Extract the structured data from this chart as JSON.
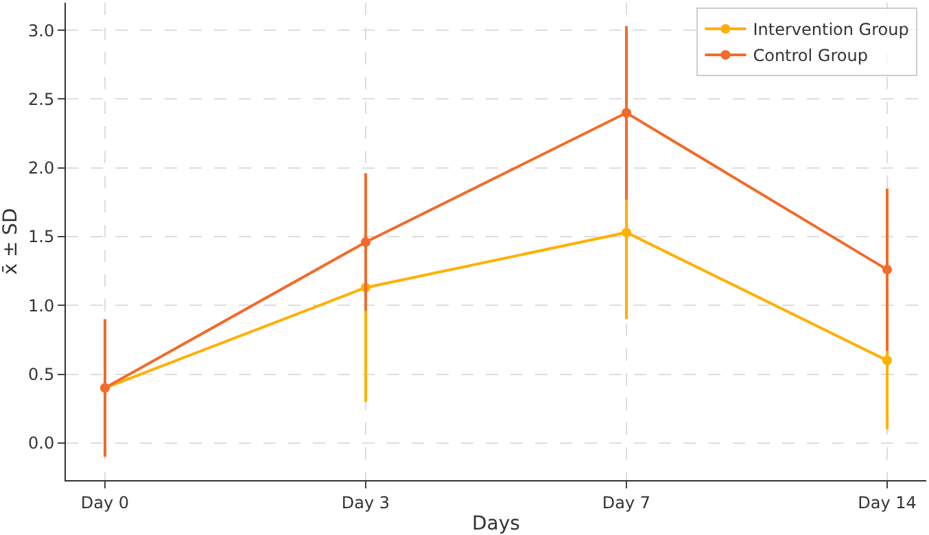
{
  "chart_data": {
    "type": "line",
    "xlabel": "Days",
    "ylabel": "x̄ ± SD",
    "categories": [
      "Day 0",
      "Day 3",
      "Day 7",
      "Day 14"
    ],
    "series": [
      {
        "name": "Intervention Group",
        "color": "#ffb000",
        "values": [
          0.4,
          1.13,
          1.53,
          0.6
        ],
        "errors": [
          null,
          0.83,
          0.63,
          0.5
        ]
      },
      {
        "name": "Control Group",
        "color": "#f26b2a",
        "values": [
          0.4,
          1.46,
          2.4,
          1.26
        ],
        "errors": [
          0.5,
          0.5,
          0.63,
          0.59
        ]
      }
    ],
    "ylim": [
      -0.27,
      3.2
    ],
    "yticks": [
      {
        "value": 0,
        "label": "0.0"
      },
      0.5,
      {
        "value": 1,
        "label": "1.0"
      },
      1.5,
      {
        "value": 2,
        "label": "2.0"
      },
      2.5,
      {
        "value": 3,
        "label": "3.0"
      }
    ],
    "grid": true,
    "legend": "top right",
    "marker": "circle",
    "line_style": "solid"
  }
}
